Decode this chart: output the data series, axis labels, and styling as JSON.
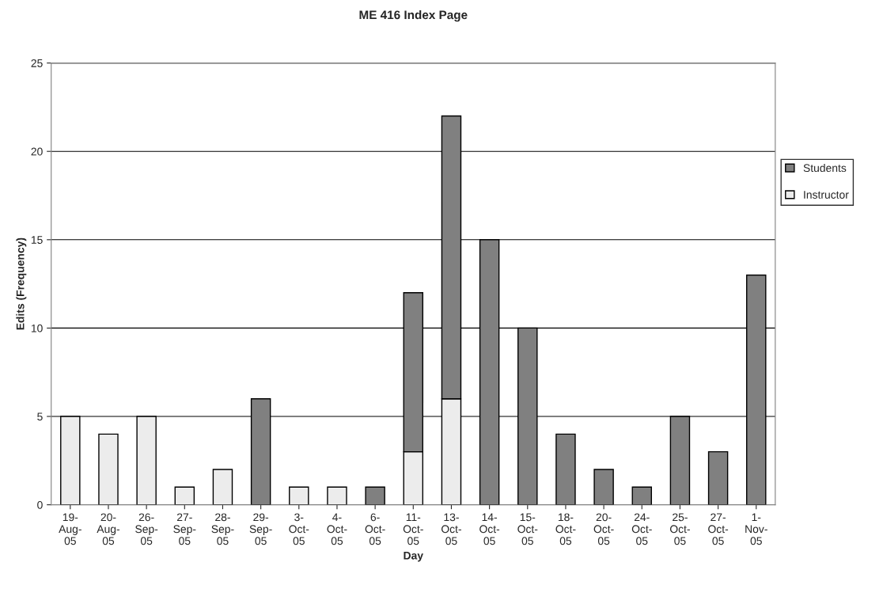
{
  "chart_data": {
    "type": "bar",
    "title": "ME 416 Index Page",
    "xlabel": "Day",
    "ylabel": "Edits (Frequency)",
    "categories": [
      "19-Aug-05",
      "20-Aug-05",
      "26-Sep-05",
      "27-Sep-05",
      "28-Sep-05",
      "29-Sep-05",
      "3-Oct-05",
      "4-Oct-05",
      "6-Oct-05",
      "11-Oct-05",
      "13-Oct-05",
      "14-Oct-05",
      "15-Oct-05",
      "18-Oct-05",
      "20-Oct-05",
      "24-Oct-05",
      "25-Oct-05",
      "27-Oct-05",
      "1-Nov-05"
    ],
    "stacked": true,
    "series": [
      {
        "name": "Instructor",
        "color": "#ececec",
        "values": [
          5,
          4,
          5,
          1,
          2,
          0,
          1,
          1,
          0,
          3,
          6,
          0,
          0,
          0,
          0,
          0,
          0,
          0,
          0
        ]
      },
      {
        "name": "Students",
        "color": "#808080",
        "values": [
          0,
          0,
          0,
          0,
          0,
          6,
          0,
          0,
          1,
          9,
          16,
          15,
          10,
          4,
          2,
          1,
          5,
          3,
          13
        ]
      }
    ],
    "ylim": [
      0,
      25
    ],
    "yticks": [
      0,
      5,
      10,
      15,
      20,
      25
    ],
    "grid": "y",
    "legend": "right"
  }
}
